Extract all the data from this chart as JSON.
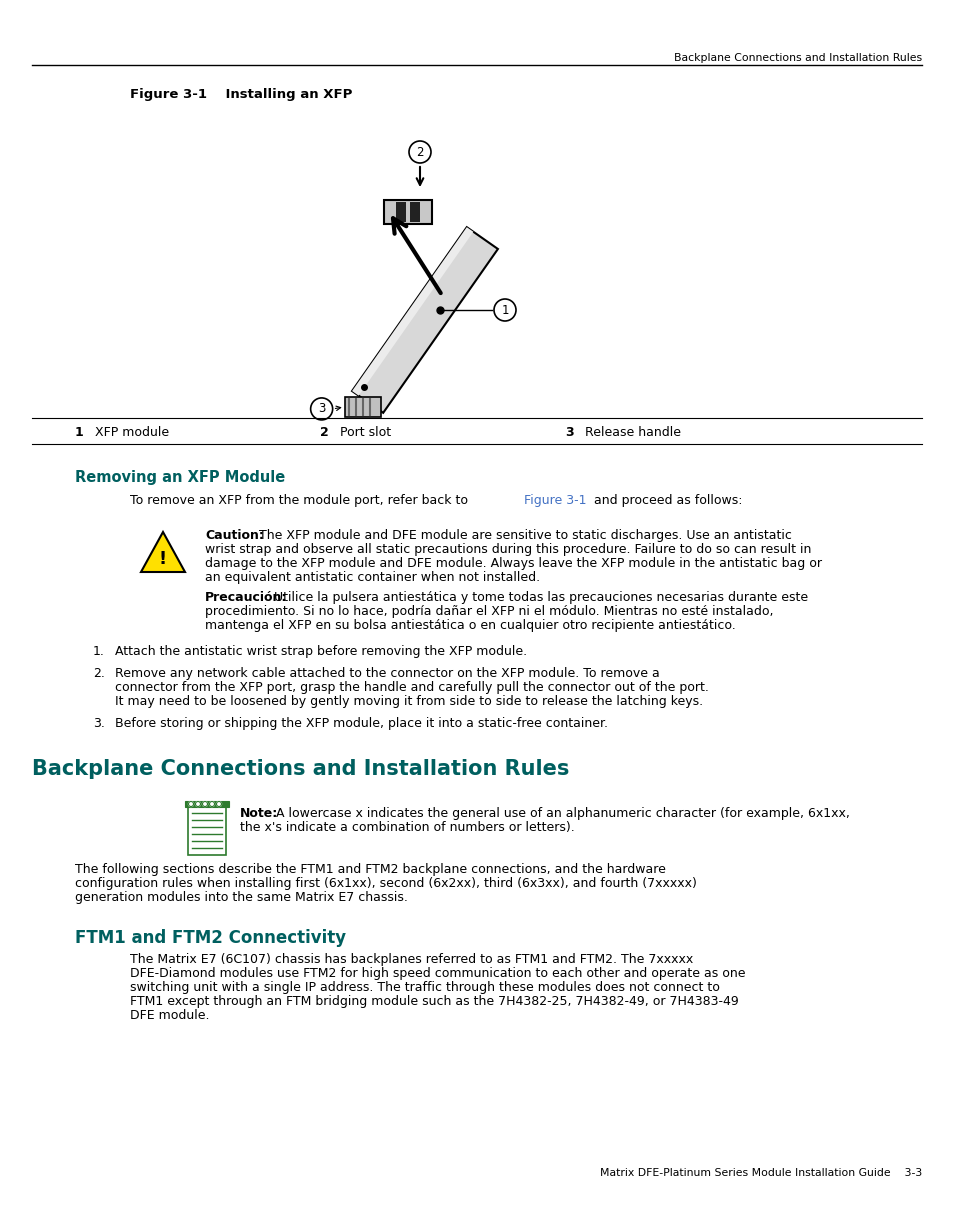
{
  "page_bg": "#ffffff",
  "header_text": "Backplane Connections and Installation Rules",
  "figure_label": "Figure 3-1    Installing an XFP",
  "legend_items": [
    {
      "num": "1",
      "label": "XFP module"
    },
    {
      "num": "2",
      "label": "Port slot"
    },
    {
      "num": "3",
      "label": "Release handle"
    }
  ],
  "section1_title": "Removing an XFP Module",
  "caution_bold": "Caution:",
  "caution_rest": " The XFP module and DFE module are sensitive to static discharges. Use an antistatic",
  "caution_line2": "wrist strap and observe all static precautions during this procedure. Failure to do so can result in",
  "caution_line3": "damage to the XFP module and DFE module. Always leave the XFP module in the antistatic bag or",
  "caution_line4": "an equivalent antistatic container when not installed.",
  "precaucion_bold": "Precaución:",
  "precaucion_rest": " Utilice la pulsera antiestática y tome todas las precauciones necesarias durante este",
  "precaucion_line2": "procedimiento. Si no lo hace, podría dañar el XFP ni el módulo. Mientras no esté instalado,",
  "precaucion_line3": "mantenga el XFP en su bolsa antiestática o en cualquier otro recipiente antiestático.",
  "step1": "Attach the antistatic wrist strap before removing the XFP module.",
  "step2a": "Remove any network cable attached to the connector on the XFP module. To remove a",
  "step2b": "connector from the XFP port, grasp the handle and carefully pull the connector out of the port.",
  "step2c": "It may need to be loosened by gently moving it from side to side to release the latching keys.",
  "step3": "Before storing or shipping the XFP module, place it into a static-free container.",
  "section2_title": "Backplane Connections and Installation Rules",
  "note_bold": "Note:",
  "note_rest": " A lowercase x indicates the general use of an alphanumeric character (for example, 6x1xx,",
  "note_line2": "the x's indicate a combination of numbers or letters).",
  "s2body1": "The following sections describe the FTM1 and FTM2 backplane connections, and the hardware",
  "s2body2": "configuration rules when installing first (6x1xx), second (6x2xx), third (6x3xx), and fourth (7xxxxx)",
  "s2body3": "generation modules into the same Matrix E7 chassis.",
  "section3_title": "FTM1 and FTM2 Connectivity",
  "s3body1": "The Matrix E7 (6C107) chassis has backplanes referred to as FTM1 and FTM2. The 7xxxxx",
  "s3body2": "DFE-Diamond modules use FTM2 for high speed communication to each other and operate as one",
  "s3body3": "switching unit with a single IP address. The traffic through these modules does not connect to",
  "s3body4": "FTM1 except through an FTM bridging module such as the 7H4382-25, 7H4382-49, or 7H4383-49",
  "s3body5": "DFE module.",
  "footer_text": "Matrix DFE-Platinum Series Module Installation Guide    3-3",
  "teal_color": "#005f5f",
  "blue_link_color": "#4472C4",
  "green_color": "#2d7a2d",
  "body_fs": 9.0,
  "small_fs": 7.8
}
